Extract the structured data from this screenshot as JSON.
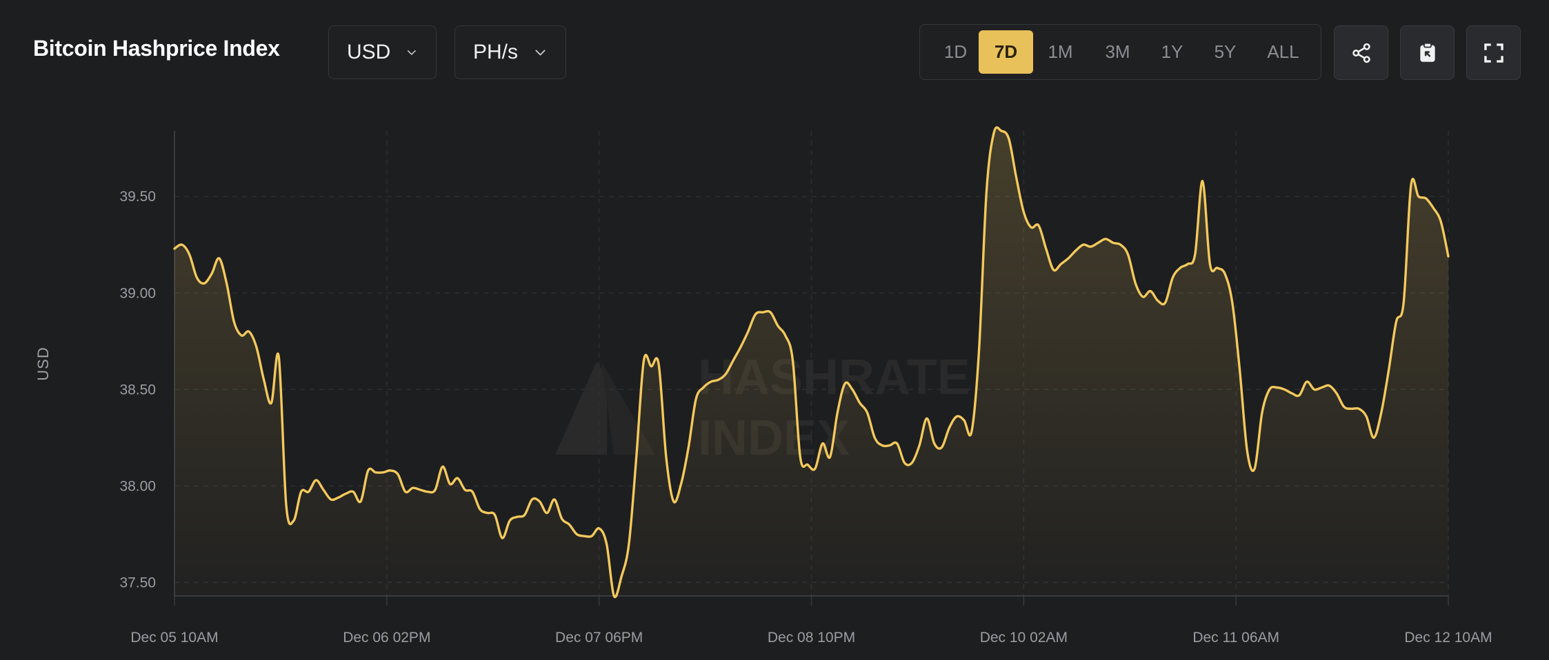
{
  "header": {
    "title": "Bitcoin Hashprice Index",
    "currency": "USD",
    "unit": "PH/s"
  },
  "ranges": [
    {
      "label": "1D",
      "active": false
    },
    {
      "label": "7D",
      "active": true
    },
    {
      "label": "1M",
      "active": false
    },
    {
      "label": "3M",
      "active": false
    },
    {
      "label": "1Y",
      "active": false
    },
    {
      "label": "5Y",
      "active": false
    },
    {
      "label": "ALL",
      "active": false
    }
  ],
  "toolbar_icons": [
    "share-icon",
    "clipboard-icon",
    "fullscreen-icon"
  ],
  "watermark": {
    "line1": "HASHRATE",
    "line2": "INDEX"
  },
  "colors": {
    "accent": "#e8c15a",
    "background": "#1d1e20",
    "line": "#f4c95d"
  },
  "chart_data": {
    "type": "area",
    "title": "",
    "xlabel": "",
    "ylabel": "USD",
    "ylim": [
      37.43,
      39.84
    ],
    "yticks": [
      "39.50",
      "39.00",
      "38.50",
      "38.00",
      "37.50"
    ],
    "ytick_values": [
      39.5,
      39.0,
      38.5,
      38.0,
      37.5
    ],
    "xticks": [
      "Dec 05 10AM",
      "Dec 06 02PM",
      "Dec 07 06PM",
      "Dec 08 10PM",
      "Dec 10 02AM",
      "Dec 11 06AM",
      "Dec 12 10AM"
    ],
    "grid": true,
    "series": [
      {
        "values": [
          39.23,
          39.25,
          39.2,
          39.08,
          39.05,
          39.1,
          39.18,
          39.05,
          38.85,
          38.78,
          38.8,
          38.72,
          38.55,
          38.43,
          38.67,
          37.9,
          37.82,
          37.97,
          37.97,
          38.03,
          37.98,
          37.93,
          37.94,
          37.96,
          37.97,
          37.92,
          38.08,
          38.07,
          38.07,
          38.08,
          38.06,
          37.97,
          37.99,
          37.98,
          37.97,
          37.98,
          38.1,
          38.01,
          38.04,
          37.98,
          37.97,
          37.88,
          37.86,
          37.85,
          37.73,
          37.82,
          37.84,
          37.85,
          37.93,
          37.92,
          37.86,
          37.93,
          37.83,
          37.8,
          37.75,
          37.74,
          37.74,
          37.78,
          37.7,
          37.43,
          37.53,
          37.7,
          38.15,
          38.65,
          38.62,
          38.63,
          38.15,
          37.92,
          38.01,
          38.2,
          38.45,
          38.51,
          38.54,
          38.55,
          38.58,
          38.65,
          38.72,
          38.8,
          38.89,
          38.9,
          38.9,
          38.83,
          38.78,
          38.65,
          38.15,
          38.11,
          38.09,
          38.22,
          38.15,
          38.38,
          38.53,
          38.5,
          38.43,
          38.38,
          38.25,
          38.21,
          38.21,
          38.22,
          38.12,
          38.12,
          38.21,
          38.35,
          38.22,
          38.2,
          38.3,
          38.36,
          38.34,
          38.28,
          38.7,
          39.52,
          39.83,
          39.84,
          39.8,
          39.6,
          39.42,
          39.34,
          39.35,
          39.23,
          39.12,
          39.15,
          39.18,
          39.22,
          39.25,
          39.24,
          39.26,
          39.28,
          39.26,
          39.25,
          39.2,
          39.05,
          38.98,
          39.01,
          38.96,
          38.95,
          39.08,
          39.13,
          39.15,
          39.2,
          39.58,
          39.15,
          39.13,
          39.1,
          38.95,
          38.6,
          38.18,
          38.09,
          38.38,
          38.5,
          38.51,
          38.5,
          38.48,
          38.47,
          38.54,
          38.5,
          38.51,
          38.52,
          38.48,
          38.41,
          38.4,
          38.4,
          38.36,
          38.25,
          38.38,
          38.6,
          38.85,
          38.95,
          39.56,
          39.5,
          39.49,
          39.44,
          39.37,
          39.19
        ]
      }
    ]
  }
}
